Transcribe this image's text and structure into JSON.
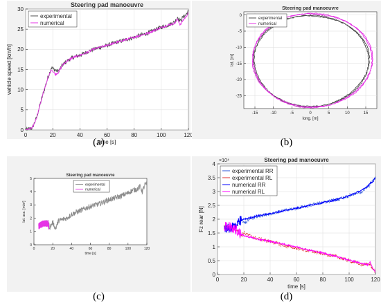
{
  "chart_data": [
    {
      "id": "a",
      "type": "line",
      "panel_label": "(a)",
      "title": "Steering pad manoeuvre",
      "xlabel": "time [s]",
      "ylabel": "vehicle speed [km/h]",
      "xlim": [
        0,
        120
      ],
      "ylim": [
        0,
        30
      ],
      "xticks": [
        "0",
        "20",
        "40",
        "60",
        "80",
        "100",
        "120"
      ],
      "yticks": [
        "0",
        "5",
        "10",
        "15",
        "20",
        "25",
        "30"
      ],
      "grid": true,
      "legend_position": "top-left",
      "series": [
        {
          "name": "experimental",
          "color": "#4d4d4d",
          "noise": 0.5,
          "x": [
            0,
            5,
            8,
            12,
            16,
            19,
            21,
            24,
            27,
            30,
            35,
            40,
            45,
            50,
            55,
            60,
            65,
            70,
            75,
            80,
            85,
            90,
            95,
            100,
            105,
            110,
            112,
            114,
            116,
            118,
            120
          ],
          "y": [
            0,
            0.5,
            3,
            8,
            12.5,
            15.5,
            15,
            14.5,
            16,
            17,
            18,
            18.5,
            19.3,
            20,
            20.5,
            21,
            21.5,
            22,
            22.5,
            23,
            23.5,
            24,
            24.8,
            25.5,
            26,
            26.8,
            28,
            27,
            28,
            28.5,
            29.5
          ]
        },
        {
          "name": "numerical",
          "color": "#e633e6",
          "noise": 0.25,
          "x": [
            0,
            5,
            8,
            12,
            16,
            19,
            22,
            24,
            27,
            30,
            35,
            40,
            45,
            50,
            55,
            60,
            65,
            70,
            75,
            80,
            85,
            90,
            95,
            100,
            105,
            110,
            112,
            114,
            116,
            118,
            120
          ],
          "y": [
            0,
            0.5,
            3,
            8,
            12.5,
            15,
            13.8,
            14.2,
            16,
            17,
            18,
            18.5,
            19.2,
            20,
            20.5,
            21,
            21.5,
            22,
            22.5,
            23,
            23.5,
            24,
            24.7,
            25.4,
            26,
            26.5,
            27.5,
            26,
            27.2,
            28,
            29
          ]
        }
      ]
    },
    {
      "id": "b",
      "type": "line",
      "panel_label": "(b)",
      "title": "Steering pad manoeuvre",
      "xlabel": "long. [m]",
      "ylabel": "lat. [m]",
      "xlim": [
        -18,
        18
      ],
      "ylim": [
        -29,
        1
      ],
      "xticks": [
        "-15",
        "-10",
        "-5",
        "0",
        "5",
        "10",
        "15"
      ],
      "yticks": [
        "-25",
        "-20",
        "-15",
        "-10",
        "-5",
        "0"
      ],
      "grid": true,
      "legend_position": "top-left",
      "series": [
        {
          "name": "experimental",
          "color": "#4d4d4d",
          "center": [
            0.2,
            -14.2
          ],
          "radius": [
            15.6,
            14.1
          ],
          "turns": 2
        },
        {
          "name": "numerical",
          "color": "#e633e6",
          "center": [
            0.5,
            -14.0
          ],
          "radius": [
            16.2,
            14.5
          ],
          "turns": 2
        }
      ]
    },
    {
      "id": "c",
      "type": "line",
      "panel_label": "(c)",
      "title": "Steering pad manoeuvre",
      "xlabel": "time [s]",
      "ylabel": "lat. acc. [m/s²]",
      "xlim": [
        0,
        120
      ],
      "ylim": [
        0,
        5
      ],
      "xticks": [
        "0",
        "20",
        "40",
        "60",
        "80",
        "100",
        "120"
      ],
      "yticks": [
        "0",
        "1",
        "2",
        "3",
        "4",
        "5"
      ],
      "grid": false,
      "legend_position": "top-center",
      "series": [
        {
          "name": "experimental",
          "color": "#8c8c8c",
          "noise": 0.2,
          "x": [
            5,
            10,
            15,
            17,
            20,
            23,
            26,
            30,
            35,
            40,
            50,
            60,
            70,
            80,
            90,
            100,
            105,
            110,
            113,
            115,
            118,
            120
          ],
          "y": [
            1.5,
            1.6,
            1.7,
            1.3,
            1.7,
            1.2,
            1.8,
            1.9,
            2.0,
            2.3,
            2.6,
            2.9,
            3.1,
            3.4,
            3.6,
            3.9,
            4.1,
            4.2,
            4.4,
            4.0,
            4.5,
            4.6
          ]
        },
        {
          "name": "numerical",
          "color": "#e633e6",
          "noise": 0.25,
          "x": [
            5,
            10,
            15,
            16
          ],
          "y": [
            1.4,
            1.6,
            1.6,
            1.3
          ]
        }
      ]
    },
    {
      "id": "d",
      "type": "line",
      "panel_label": "(d)",
      "title": "Steering pad manoeuvre",
      "xlabel": "time [s]",
      "ylabel": "Fz rear [N]",
      "exponent": "×10⁴",
      "xlim": [
        0,
        120
      ],
      "ylim": [
        0,
        4
      ],
      "xticks": [
        "0",
        "20",
        "40",
        "60",
        "80",
        "100",
        "120"
      ],
      "yticks": [
        "0",
        "0.5",
        "1",
        "1.5",
        "2",
        "2.5",
        "3",
        "3.5",
        "4"
      ],
      "grid": true,
      "legend_position": "top-left",
      "series": [
        {
          "name": "experimental RR",
          "color": "#2b55d9",
          "noise": 0.06,
          "x": [
            5,
            10,
            15,
            18,
            20,
            25,
            30,
            40,
            50,
            60,
            70,
            80,
            90,
            100,
            110,
            115,
            118,
            120
          ],
          "y": [
            1.65,
            1.7,
            1.75,
            2.0,
            1.85,
            2.0,
            2.1,
            2.2,
            2.3,
            2.4,
            2.5,
            2.6,
            2.7,
            2.85,
            3.0,
            3.2,
            3.4,
            3.5
          ]
        },
        {
          "name": "experimental RL",
          "color": "#e03030",
          "noise": 0.06,
          "x": [
            5,
            10,
            15,
            18,
            20,
            25,
            30,
            40,
            50,
            60,
            70,
            80,
            90,
            100,
            110,
            115,
            118,
            120
          ],
          "y": [
            1.75,
            1.7,
            1.6,
            1.4,
            1.5,
            1.4,
            1.3,
            1.2,
            1.05,
            0.95,
            0.85,
            0.75,
            0.65,
            0.5,
            0.35,
            0.4,
            0.2,
            0.1
          ]
        },
        {
          "name": "numerical RR",
          "color": "#0000ff",
          "noise": 0.03,
          "x": [
            5,
            10,
            15,
            18,
            20,
            25,
            30,
            40,
            50,
            60,
            70,
            80,
            90,
            100,
            110,
            114,
            116,
            118,
            120
          ],
          "y": [
            1.65,
            1.7,
            1.8,
            1.95,
            2.0,
            2.05,
            2.12,
            2.2,
            2.3,
            2.4,
            2.5,
            2.6,
            2.7,
            2.85,
            3.05,
            3.2,
            3.3,
            3.35,
            3.5
          ],
          "burst": {
            "x": [
              3,
              18
            ],
            "amp": 0.2
          }
        },
        {
          "name": "numerical RL",
          "color": "#ff00ff",
          "noise": 0.03,
          "x": [
            5,
            10,
            15,
            18,
            20,
            25,
            30,
            40,
            50,
            60,
            70,
            80,
            90,
            100,
            110,
            114,
            116,
            118,
            120
          ],
          "y": [
            1.75,
            1.7,
            1.6,
            1.45,
            1.4,
            1.35,
            1.28,
            1.2,
            1.1,
            1.0,
            0.88,
            0.78,
            0.66,
            0.52,
            0.4,
            0.35,
            0.45,
            0.2,
            0.1
          ],
          "burst": {
            "x": [
              3,
              18
            ],
            "amp": 0.2
          }
        }
      ]
    }
  ]
}
